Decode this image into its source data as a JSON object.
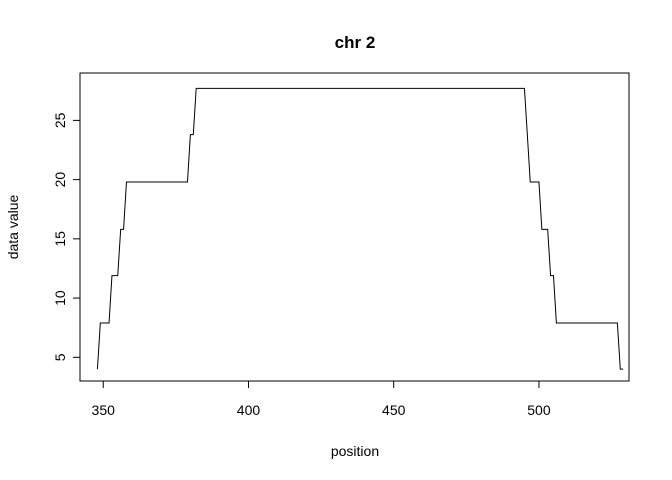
{
  "chart_data": {
    "type": "line",
    "title": "chr 2",
    "xlabel": "position",
    "ylabel": "data value",
    "xlim": [
      342,
      531
    ],
    "ylim": [
      3,
      29
    ],
    "xticks": [
      350,
      400,
      450,
      500
    ],
    "yticks": [
      5,
      10,
      15,
      20,
      25
    ],
    "grid": false,
    "series": [
      {
        "color": "#000000",
        "x": [
          348,
          349,
          352,
          353,
          355,
          356,
          357,
          358,
          379,
          380,
          381,
          382,
          495,
          496,
          497,
          498,
          500,
          501,
          503,
          504,
          505,
          506,
          527,
          528,
          529
        ],
        "y": [
          4,
          7.9,
          7.9,
          11.9,
          11.9,
          15.8,
          15.8,
          19.8,
          19.8,
          23.8,
          23.8,
          27.7,
          27.7,
          23.8,
          19.8,
          19.8,
          19.8,
          15.8,
          15.8,
          11.9,
          11.9,
          7.9,
          7.9,
          4,
          4
        ]
      }
    ]
  }
}
